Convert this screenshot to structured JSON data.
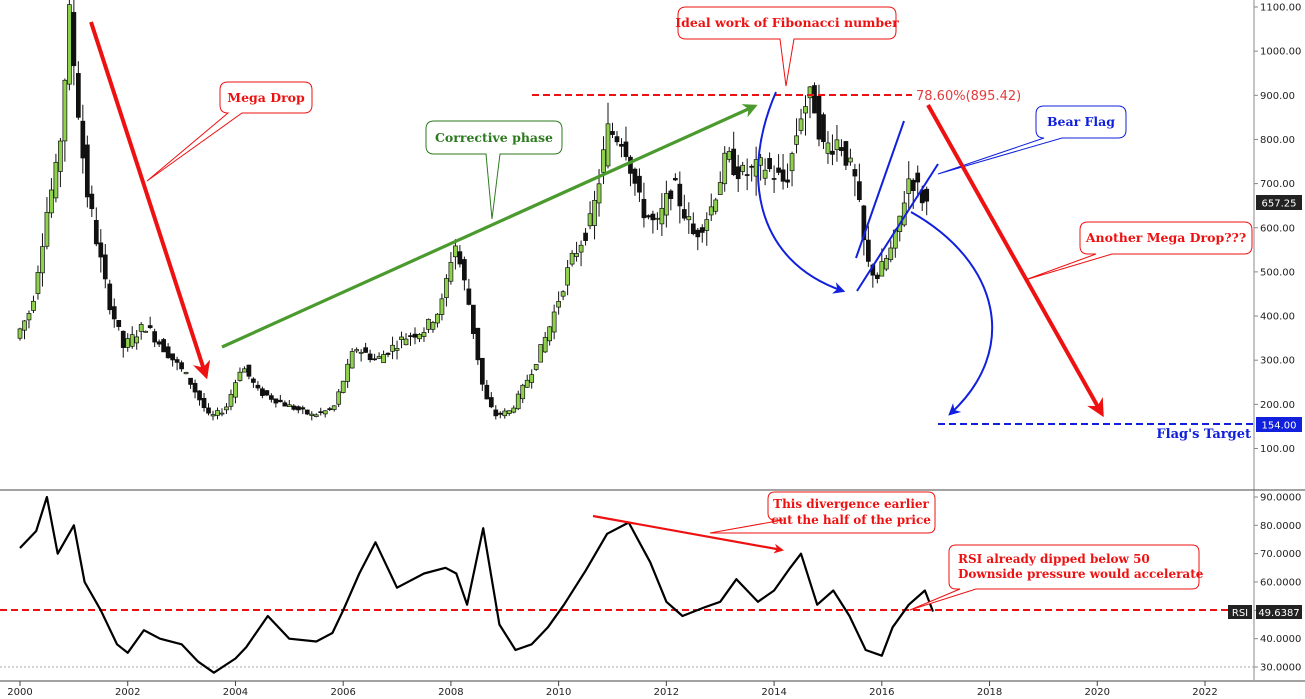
{
  "chart_data": [
    {
      "type": "candlestick",
      "ylim": [
        50,
        1100
      ],
      "xlim": [
        2000,
        2023.3
      ],
      "grid": false,
      "yticks": [
        "1100.00",
        "1000.00",
        "900.00",
        "800.00",
        "700.00",
        "600.00",
        "500.00",
        "400.00",
        "300.00",
        "200.00",
        "100.00"
      ],
      "xticks": [
        "2000",
        "2002",
        "2004",
        "2006",
        "2008",
        "2010",
        "2012",
        "2014",
        "2016",
        "2018",
        "2020",
        "2022"
      ],
      "last_price_label": "657.25",
      "target_label": "154.00",
      "price_path": [
        [
          2000.0,
          350
        ],
        [
          2000.3,
          420
        ],
        [
          2000.6,
          650
        ],
        [
          2000.8,
          750
        ],
        [
          2001.0,
          1080
        ],
        [
          2001.3,
          700
        ],
        [
          2001.7,
          450
        ],
        [
          2002.0,
          330
        ],
        [
          2002.4,
          380
        ],
        [
          2002.8,
          320
        ],
        [
          2003.2,
          260
        ],
        [
          2003.6,
          170
        ],
        [
          2003.9,
          190
        ],
        [
          2004.2,
          290
        ],
        [
          2004.5,
          230
        ],
        [
          2005.0,
          200
        ],
        [
          2005.5,
          175
        ],
        [
          2005.9,
          190
        ],
        [
          2006.3,
          330
        ],
        [
          2006.7,
          300
        ],
        [
          2007.2,
          350
        ],
        [
          2007.6,
          370
        ],
        [
          2007.9,
          420
        ],
        [
          2008.15,
          570
        ],
        [
          2008.4,
          440
        ],
        [
          2008.7,
          220
        ],
        [
          2008.9,
          175
        ],
        [
          2009.2,
          185
        ],
        [
          2009.6,
          280
        ],
        [
          2009.9,
          370
        ],
        [
          2010.3,
          520
        ],
        [
          2010.7,
          620
        ],
        [
          2011.0,
          820
        ],
        [
          2011.3,
          800
        ],
        [
          2011.6,
          650
        ],
        [
          2011.9,
          600
        ],
        [
          2012.2,
          700
        ],
        [
          2012.6,
          580
        ],
        [
          2012.9,
          640
        ],
        [
          2013.2,
          760
        ],
        [
          2013.5,
          720
        ],
        [
          2013.9,
          740
        ],
        [
          2014.3,
          700
        ],
        [
          2014.6,
          870
        ],
        [
          2014.8,
          900
        ],
        [
          2015.0,
          780
        ],
        [
          2015.3,
          800
        ],
        [
          2015.6,
          700
        ],
        [
          2015.8,
          520
        ],
        [
          2016.0,
          490
        ],
        [
          2016.3,
          560
        ],
        [
          2016.6,
          720
        ],
        [
          2016.9,
          655
        ]
      ]
    },
    {
      "type": "line",
      "name": "RSI",
      "ylim": [
        27,
        92
      ],
      "xlim": [
        2000,
        2023.3
      ],
      "yticks": [
        "90.0000",
        "80.0000",
        "70.0000",
        "60.0000",
        "50.0000",
        "40.0000",
        "30.0000"
      ],
      "rsi_label": "RSI",
      "rsi_value": "49.6387",
      "midline": 50,
      "x": [
        2000.0,
        2000.3,
        2000.5,
        2000.7,
        2001.0,
        2001.2,
        2001.5,
        2001.8,
        2002.0,
        2002.3,
        2002.6,
        2003.0,
        2003.3,
        2003.6,
        2004.0,
        2004.2,
        2004.6,
        2005.0,
        2005.5,
        2005.8,
        2006.0,
        2006.3,
        2006.6,
        2007.0,
        2007.5,
        2007.9,
        2008.1,
        2008.3,
        2008.6,
        2008.9,
        2009.2,
        2009.5,
        2009.8,
        2010.1,
        2010.5,
        2010.9,
        2011.3,
        2011.7,
        2012.0,
        2012.3,
        2012.7,
        2013.0,
        2013.3,
        2013.7,
        2014.0,
        2014.3,
        2014.5,
        2014.8,
        2015.1,
        2015.4,
        2015.7,
        2016.0,
        2016.2,
        2016.5,
        2016.8,
        2016.95
      ],
      "values": [
        72,
        78,
        90,
        70,
        80,
        60,
        50,
        38,
        35,
        43,
        40,
        38,
        32,
        28,
        33,
        37,
        48,
        40,
        39,
        42,
        50,
        63,
        74,
        58,
        63,
        65,
        63,
        52,
        79,
        45,
        36,
        38,
        44,
        52,
        64,
        77,
        81,
        67,
        53,
        48,
        51,
        53,
        61,
        53,
        57,
        65,
        70,
        52,
        57,
        48,
        36,
        34,
        44,
        52,
        57,
        49.6
      ]
    }
  ],
  "annotations": {
    "mega_drop": "Mega Drop",
    "corrective_phase": "Corrective phase",
    "fibonacci": "Ideal work of Fibonacci number",
    "fib_level": "78.60%(895.42)",
    "bear_flag": "Bear Flag",
    "another_drop": "Another Mega Drop???",
    "flag_target": "Flag's Target",
    "divergence_line1": "This divergence earlier",
    "divergence_line2": "cut the half of the price",
    "rsi_dip_line1": "RSI already dipped below 50",
    "rsi_dip_line2": "Downside pressure would accelerate"
  },
  "colors": {
    "red": "#ee1111",
    "green": "#4a9a2e",
    "green_dark": "#2c7a1e",
    "blue": "#1020dd",
    "candle_up": "#8fd14f",
    "candle_down": "#111111",
    "fib_text": "#e23c3c"
  }
}
